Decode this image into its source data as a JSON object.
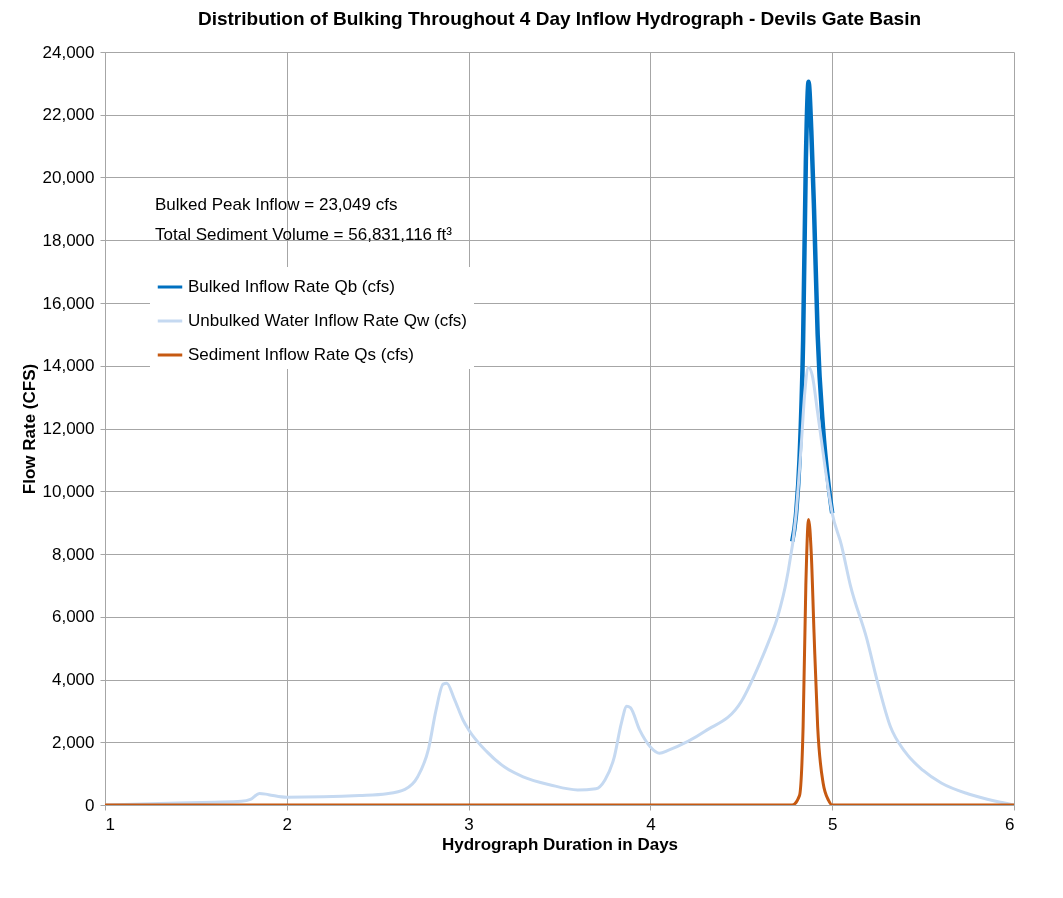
{
  "chart_data": {
    "type": "line",
    "title": "Distribution of Bulking Throughout 4 Day Inflow Hydrograph - Devils Gate Basin",
    "xlabel": "Hydrograph Duration in Days",
    "ylabel": "Flow Rate (CFS)",
    "annotations": [
      "Bulked Peak Inflow = 23,049 cfs",
      "Total Sediment Volume = 56,831,116 ft³"
    ],
    "xlim": [
      1,
      6
    ],
    "xticks": [
      1,
      2,
      3,
      4,
      5,
      6
    ],
    "ylim": [
      0,
      24000
    ],
    "yticks": [
      {
        "value": 0,
        "label": "0"
      },
      {
        "value": 2000,
        "label": "2,000"
      },
      {
        "value": 4000,
        "label": "4,000"
      },
      {
        "value": 6000,
        "label": "6,000"
      },
      {
        "value": 8000,
        "label": "8,000"
      },
      {
        "value": 10000,
        "label": "10,000"
      },
      {
        "value": 12000,
        "label": "12,000"
      },
      {
        "value": 14000,
        "label": "14,000"
      },
      {
        "value": 16000,
        "label": "16,000"
      },
      {
        "value": 18000,
        "label": "18,000"
      },
      {
        "value": 20000,
        "label": "20,000"
      },
      {
        "value": 22000,
        "label": "22,000"
      },
      {
        "value": 24000,
        "label": "24,000"
      }
    ],
    "grid": true,
    "legend": "top left",
    "series": [
      {
        "name": "Bulked Inflow Rate Qb (cfs)",
        "color": "#0070c0",
        "x": [
          4.78,
          4.8,
          4.82,
          4.84,
          4.855,
          4.87,
          4.885,
          4.9,
          4.92,
          4.95,
          4.98,
          5.0
        ],
        "values": [
          8400,
          9200,
          11000,
          14800,
          20500,
          23049,
          21500,
          19000,
          15000,
          12000,
          10200,
          9300
        ]
      },
      {
        "name": "Unbulked Water Inflow Rate Qw (cfs)",
        "color": "#c5d9f1",
        "x": [
          1.0,
          1.2,
          1.4,
          1.6,
          1.75,
          1.8,
          1.85,
          1.9,
          2.0,
          2.2,
          2.4,
          2.55,
          2.65,
          2.72,
          2.78,
          2.82,
          2.86,
          2.88,
          2.92,
          2.97,
          3.0,
          3.1,
          3.2,
          3.3,
          3.45,
          3.6,
          3.7,
          3.75,
          3.8,
          3.84,
          3.87,
          3.89,
          3.94,
          4.0,
          4.05,
          4.1,
          4.3,
          4.5,
          4.6,
          4.65,
          4.7,
          4.75,
          4.8,
          4.83,
          4.85,
          4.87,
          4.89,
          4.92,
          4.96,
          5.0,
          5.05,
          5.1,
          5.19,
          5.25,
          5.32,
          5.4,
          5.5,
          5.6,
          5.75,
          5.9,
          6.0
        ],
        "values": [
          0,
          30,
          60,
          90,
          120,
          180,
          370,
          330,
          250,
          260,
          300,
          360,
          500,
          900,
          1800,
          3000,
          3850,
          3880,
          3400,
          2700,
          2400,
          1700,
          1200,
          900,
          640,
          480,
          520,
          800,
          1500,
          2600,
          3150,
          3100,
          2400,
          1850,
          1650,
          1750,
          2350,
          3300,
          4500,
          5200,
          6000,
          7200,
          9200,
          11500,
          13200,
          13950,
          13700,
          12500,
          10800,
          9300,
          8300,
          7000,
          5300,
          3900,
          2500,
          1700,
          1100,
          700,
          350,
          120,
          0
        ]
      },
      {
        "name": "Sediment Inflow Rate Qs (cfs)",
        "color": "#c65911",
        "x": [
          1.0,
          4.78,
          4.82,
          4.84,
          4.855,
          4.87,
          4.885,
          4.9,
          4.92,
          4.95,
          4.98,
          5.0,
          6.0
        ],
        "values": [
          0,
          0,
          300,
          2500,
          7000,
          9100,
          8000,
          5500,
          2500,
          700,
          150,
          0,
          0
        ]
      }
    ]
  }
}
